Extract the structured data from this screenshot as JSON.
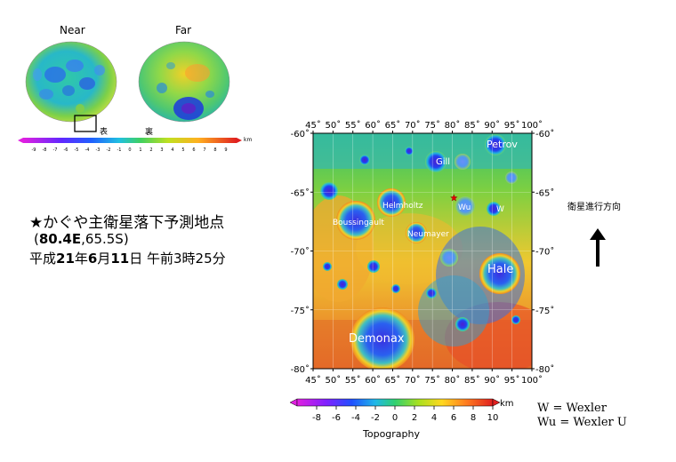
{
  "globes": {
    "near_label": "Near",
    "far_label": "Far",
    "near_side_mark": "表",
    "far_side_mark": "裏",
    "small_scale": {
      "unit": "km",
      "ticks": [
        "-9",
        "-8",
        "-7",
        "-6",
        "-5",
        "-4",
        "-3",
        "-2",
        "-1",
        "0",
        "1",
        "2",
        "3",
        "4",
        "5",
        "6",
        "7",
        "8",
        "9"
      ]
    }
  },
  "annotation": {
    "star_glyph": "★",
    "line1": "かぐや主衛星落下予測地点",
    "line2_open": "(",
    "line2_lon": "80.4E",
    "line2_sep": ",",
    "line2_lat": "65.5S",
    "line2_close": ")",
    "line3_a": "平成",
    "line3_year": "21",
    "line3_b": "年",
    "line3_month": "6",
    "line3_c": "月",
    "line3_day": "11",
    "line3_d": "日 午前3時25分"
  },
  "map": {
    "top_lon_labels": [
      "45˚",
      "50˚",
      "55˚",
      "60˚",
      "65˚",
      "70˚",
      "75˚",
      "80˚",
      "85˚",
      "90˚",
      "95˚",
      "100˚"
    ],
    "bottom_lon_labels": [
      "45˚",
      "50˚",
      "55˚",
      "60˚",
      "65˚",
      "70˚",
      "75˚",
      "80˚",
      "85˚",
      "90˚",
      "95˚",
      "100˚"
    ],
    "lat_labels": [
      "-60˚",
      "-65˚",
      "-70˚",
      "-75˚",
      "-80˚"
    ],
    "craters": {
      "petrov": "Petrov",
      "gill": "Gill",
      "helmholtz": "Helmholtz",
      "wu": "Wu",
      "w": "W",
      "boussingault": "Boussingault",
      "neumayer": "Neumayer",
      "hale": "Hale",
      "demonax": "Demonax"
    },
    "impact_point": {
      "lon": 80.4,
      "lat": -65.5
    }
  },
  "direction_label": "衛星進行方向",
  "colorbar": {
    "unit": "km",
    "ticks": [
      "-8",
      "-6",
      "-4",
      "-2",
      "0",
      "2",
      "4",
      "6",
      "8",
      "10"
    ],
    "title": "Topography"
  },
  "abbrev": {
    "line1": "W = Wexler",
    "line2": "Wu = Wexler U"
  },
  "colors": {
    "lowest": "#e020e0",
    "low": "#3030ff",
    "mid": "#28c8a0",
    "high": "#ffd820",
    "highest": "#e02020"
  }
}
